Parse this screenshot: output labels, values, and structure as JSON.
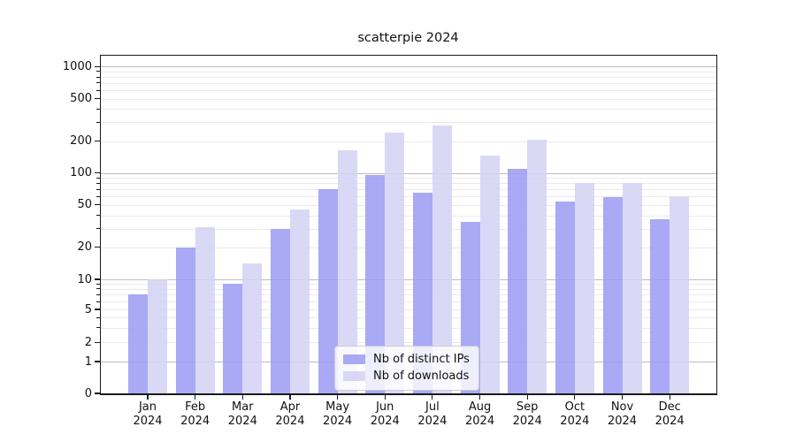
{
  "chart_data": {
    "type": "bar",
    "title": "scatterpie 2024",
    "xlabel": "",
    "ylabel": "",
    "yscale": "symlog-like",
    "y_ticks": [
      0,
      1,
      2,
      5,
      10,
      20,
      50,
      100,
      200,
      500,
      1000
    ],
    "ylim": [
      0,
      1300
    ],
    "grid": true,
    "legend_position": "lower center",
    "categories": [
      "Jan",
      "Feb",
      "Mar",
      "Apr",
      "May",
      "Jun",
      "Jul",
      "Aug",
      "Sep",
      "Oct",
      "Nov",
      "Dec"
    ],
    "year_label": "2024",
    "series": [
      {
        "name": "Nb of distinct IPs",
        "color": "#9c9cf3",
        "values": [
          7,
          20,
          9,
          30,
          70,
          95,
          65,
          35,
          110,
          54,
          59,
          37
        ]
      },
      {
        "name": "Nb of downloads",
        "color": "#d3d3f5",
        "values": [
          10,
          31,
          14,
          45,
          165,
          240,
          280,
          145,
          205,
          80,
          80,
          60
        ]
      }
    ]
  },
  "colors": {
    "major_grid": "#bdbdbd",
    "minor_grid": "#ebebeb",
    "spine": "#1a1a1a",
    "text": "#111111"
  }
}
